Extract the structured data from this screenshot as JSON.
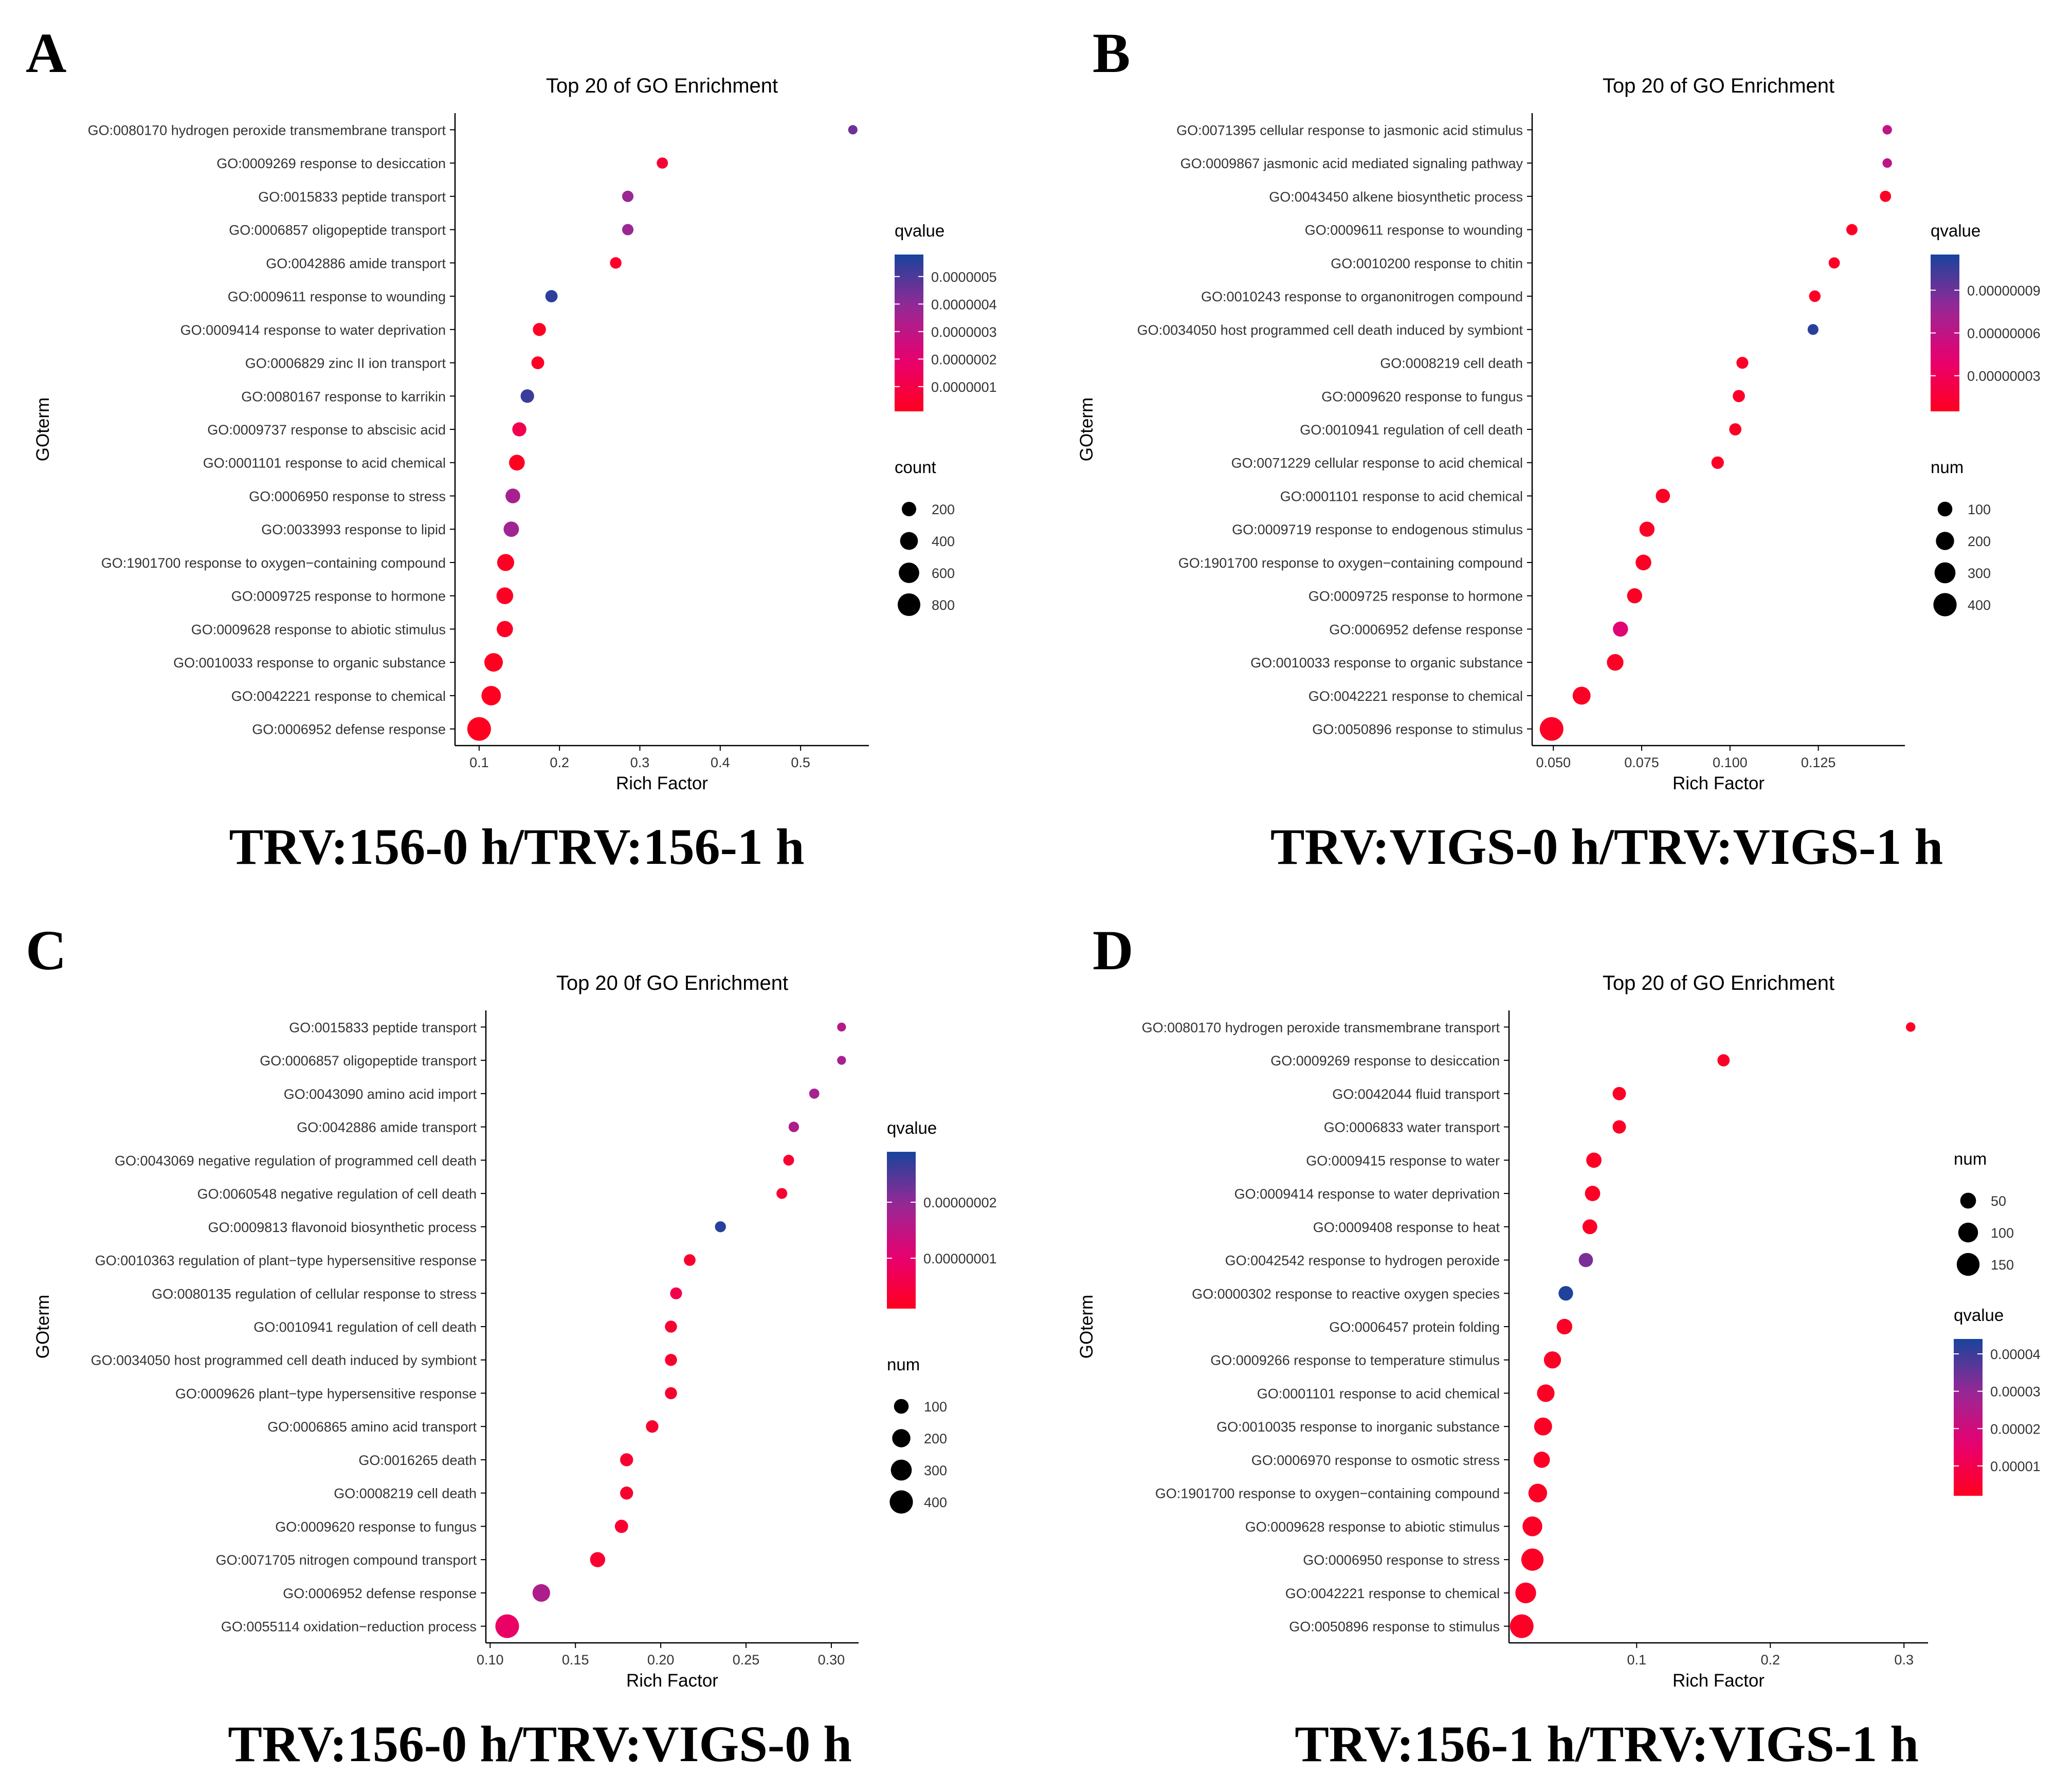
{
  "panels": [
    {
      "letter": "A",
      "caption": "TRV:156-0 h/TRV:156-1 h",
      "chart_data": {
        "type": "scatter",
        "title": "Top 20 of GO Enrichment",
        "xlabel": "Rich Factor",
        "ylabel": "GOterm",
        "xlim": [
          0.07,
          0.585
        ],
        "xticks": [
          0.1,
          0.2,
          0.3,
          0.4,
          0.5
        ],
        "xtick_labels": [
          "0.1",
          "0.2",
          "0.3",
          "0.4",
          "0.5"
        ],
        "terms": [
          "GO:0080170 hydrogen peroxide transmembrane transport",
          "GO:0009269 response to desiccation",
          "GO:0015833 peptide transport",
          "GO:0006857 oligopeptide transport",
          "GO:0042886 amide transport",
          "GO:0009611 response to wounding",
          "GO:0009414 response to water deprivation",
          "GO:0006829 zinc II ion transport",
          "GO:0080167 response to karrikin",
          "GO:0009737 response to abscisic acid",
          "GO:0001101 response to acid chemical",
          "GO:0006950 response to stress",
          "GO:0033993 response to lipid",
          "GO:1901700 response to oxygen−containing compound",
          "GO:0009725 response to hormone",
          "GO:0009628 response to abiotic stimulus",
          "GO:0010033 response to organic substance",
          "GO:0042221 response to chemical",
          "GO:0006952 defense response"
        ],
        "rich_factor": [
          0.565,
          0.328,
          0.285,
          0.285,
          0.27,
          0.19,
          0.175,
          0.173,
          0.16,
          0.15,
          0.147,
          0.142,
          0.14,
          0.133,
          0.132,
          0.132,
          0.118,
          0.115,
          0.1
        ],
        "size_values": [
          30,
          75,
          80,
          80,
          85,
          110,
          140,
          130,
          160,
          185,
          270,
          215,
          250,
          350,
          330,
          300,
          450,
          520,
          900
        ],
        "color_values": [
          4.5e-07,
          6e-08,
          3.8e-07,
          3.8e-07,
          3e-08,
          5.5e-07,
          2e-08,
          2e-08,
          5.3e-07,
          1.2e-07,
          1e-08,
          3.5e-07,
          3.7e-07,
          2e-08,
          2e-08,
          2e-08,
          1e-08,
          1e-08,
          1e-08
        ],
        "color_legend": {
          "title": "qvalue",
          "min": 1e-08,
          "max": 5.8e-07,
          "ticks": [
            1e-07,
            2e-07,
            3e-07,
            4e-07,
            5e-07
          ],
          "tick_labels": [
            "0.0000001",
            "0.0000002",
            "0.0000003",
            "0.0000004",
            "0.0000005"
          ]
        },
        "size_legend": {
          "title": "count",
          "values": [
            200,
            400,
            600,
            800
          ],
          "labels": [
            "200",
            "400",
            "600",
            "800"
          ]
        },
        "size_range": [
          30,
          900
        ],
        "legend_order": "color-first"
      }
    },
    {
      "letter": "B",
      "caption": "TRV:VIGS-0 h/TRV:VIGS-1 h",
      "chart_data": {
        "type": "scatter",
        "title": "Top 20 of GO Enrichment",
        "xlabel": "Rich Factor",
        "ylabel": "GOterm",
        "xlim": [
          0.044,
          0.1495
        ],
        "xticks": [
          0.05,
          0.075,
          0.1,
          0.125
        ],
        "xtick_labels": [
          "0.050",
          "0.075",
          "0.100",
          "0.125"
        ],
        "terms": [
          "GO:0071395 cellular response to jasmonic acid stimulus",
          "GO:0009867 jasmonic acid mediated signaling pathway",
          "GO:0043450 alkene biosynthetic process",
          "GO:0009611 response to wounding",
          "GO:0010200 response to chitin",
          "GO:0010243 response to organonitrogen compound",
          "GO:0034050 host programmed cell death induced by symbiont",
          "GO:0008219 cell death",
          "GO:0009620 response to fungus",
          "GO:0010941 regulation of cell death",
          "GO:0071229 cellular response to acid chemical",
          "GO:0001101 response to acid chemical",
          "GO:0009719 response to endogenous stimulus",
          "GO:1901700 response to oxygen−containing compound",
          "GO:0009725 response to hormone",
          "GO:0006952 defense response",
          "GO:0010033 response to organic substance",
          "GO:0042221 response to chemical",
          "GO:0050896 response to stimulus"
        ],
        "rich_factor": [
          0.1445,
          0.1445,
          0.144,
          0.1345,
          0.1295,
          0.124,
          0.1235,
          0.1035,
          0.1025,
          0.1015,
          0.0965,
          0.081,
          0.0765,
          0.0755,
          0.073,
          0.069,
          0.0675,
          0.058,
          0.0495
        ],
        "size_values": [
          15,
          15,
          35,
          35,
          35,
          40,
          30,
          45,
          50,
          50,
          55,
          90,
          110,
          125,
          110,
          110,
          150,
          190,
          420
        ],
        "color_values": [
          6e-08,
          6e-08,
          7.5e-09,
          7.5e-09,
          7.5e-09,
          7.5e-09,
          1.1e-07,
          7.5e-09,
          7.5e-09,
          7.5e-09,
          7.5e-09,
          7.5e-09,
          7.5e-09,
          7.5e-09,
          7.5e-09,
          4.5e-08,
          7.5e-09,
          7.5e-09,
          7.5e-09
        ],
        "color_legend": {
          "title": "qvalue",
          "min": 5e-09,
          "max": 1.15e-07,
          "ticks": [
            3e-08,
            6e-08,
            9e-08
          ],
          "tick_labels": [
            "0.00000003",
            "0.00000006",
            "0.00000009"
          ]
        },
        "size_legend": {
          "title": "num",
          "values": [
            100,
            200,
            300,
            400
          ],
          "labels": [
            "100",
            "200",
            "300",
            "400"
          ]
        },
        "size_range": [
          15,
          420
        ],
        "legend_order": "color-first"
      }
    },
    {
      "letter": "C",
      "caption": "TRV:156-0 h/TRV:VIGS-0 h",
      "chart_data": {
        "type": "scatter",
        "title": "Top 20 0f GO Enrichment",
        "xlabel": "Rich Factor",
        "ylabel": "GOterm",
        "xlim": [
          0.0975,
          0.316
        ],
        "xticks": [
          0.1,
          0.15,
          0.2,
          0.25,
          0.3
        ],
        "xtick_labels": [
          "0.10",
          "0.15",
          "0.20",
          "0.25",
          "0.30"
        ],
        "terms": [
          "GO:0015833 peptide transport",
          "GO:0006857 oligopeptide transport",
          "GO:0043090 amino acid import",
          "GO:0042886 amide transport",
          "GO:0043069 negative regulation of programmed cell death",
          "GO:0060548 negative regulation of cell death",
          "GO:0009813 flavonoid biosynthetic process",
          "GO:0010363 regulation of plant−type hypersensitive response",
          "GO:0080135 regulation of cellular response to stress",
          "GO:0010941 regulation of cell death",
          "GO:0034050 host programmed cell death induced by symbiont",
          "GO:0009626 plant−type hypersensitive response",
          "GO:0006865 amino acid transport",
          "GO:0016265 death",
          "GO:0008219 cell death",
          "GO:0009620 response to fungus",
          "GO:0071705 nitrogen compound transport",
          "GO:0006952 defense response",
          "GO:0055114 oxidation−reduction process"
        ],
        "rich_factor": [
          0.306,
          0.306,
          0.29,
          0.278,
          0.275,
          0.271,
          0.235,
          0.217,
          0.209,
          0.206,
          0.206,
          0.206,
          0.195,
          0.18,
          0.18,
          0.177,
          0.163,
          0.13,
          0.11
        ],
        "size_values": [
          10,
          10,
          22,
          25,
          30,
          30,
          32,
          42,
          45,
          48,
          48,
          48,
          55,
          65,
          65,
          70,
          110,
          180,
          420
        ],
        "color_values": [
          1.6e-08,
          1.8e-08,
          1.8e-08,
          1.7e-08,
          3e-09,
          3e-09,
          2.8e-08,
          3e-09,
          6e-09,
          3e-09,
          3e-09,
          3e-09,
          3e-09,
          3e-09,
          3e-09,
          3e-09,
          3e-09,
          1.7e-08,
          9e-09
        ],
        "color_legend": {
          "title": "qvalue",
          "min": 1e-09,
          "max": 2.9e-08,
          "ticks": [
            1e-08,
            2e-08
          ],
          "tick_labels": [
            "0.00000001",
            "0.00000002"
          ]
        },
        "size_legend": {
          "title": "num",
          "values": [
            100,
            200,
            300,
            400
          ],
          "labels": [
            "100",
            "200",
            "300",
            "400"
          ]
        },
        "size_range": [
          10,
          420
        ],
        "legend_order": "color-first"
      }
    },
    {
      "letter": "D",
      "caption": "TRV:156-1 h/TRV:VIGS-1 h",
      "chart_data": {
        "type": "scatter",
        "title": "Top 20 of GO Enrichment",
        "xlabel": "Rich Factor",
        "ylabel": "GOterm",
        "xlim": [
          0.0045,
          0.318
        ],
        "xticks": [
          0.1,
          0.2,
          0.3
        ],
        "xtick_labels": [
          "0.1",
          "0.2",
          "0.3"
        ],
        "terms": [
          "GO:0080170 hydrogen peroxide transmembrane transport",
          "GO:0009269 response to desiccation",
          "GO:0042044 fluid transport",
          "GO:0006833 water transport",
          "GO:0009415 response to water",
          "GO:0009414 response to water deprivation",
          "GO:0009408 response to heat",
          "GO:0042542 response to hydrogen peroxide",
          "GO:0000302 response to reactive oxygen species",
          "GO:0006457 protein folding",
          "GO:0009266 response to temperature stimulus",
          "GO:0001101 response to acid chemical",
          "GO:0010035 response to inorganic substance",
          "GO:0006970 response to osmotic stress",
          "GO:1901700 response to oxygen−containing compound",
          "GO:0009628 response to abiotic stimulus",
          "GO:0006950 response to stress",
          "GO:0042221 response to chemical",
          "GO:0050896 response to stimulus"
        ],
        "rich_factor": [
          0.305,
          0.165,
          0.087,
          0.087,
          0.068,
          0.067,
          0.065,
          0.062,
          0.047,
          0.046,
          0.037,
          0.032,
          0.03,
          0.029,
          0.026,
          0.022,
          0.022,
          0.017,
          0.014
        ],
        "size_values": [
          6,
          20,
          28,
          28,
          45,
          45,
          40,
          35,
          38,
          48,
          65,
          70,
          75,
          55,
          85,
          100,
          140,
          115,
          165
        ],
        "color_values": [
          3e-06,
          3e-06,
          3e-06,
          3e-06,
          3e-06,
          3e-06,
          3e-06,
          3.3e-05,
          4.3e-05,
          3e-06,
          3e-06,
          3e-06,
          3e-06,
          3e-06,
          3e-06,
          3e-06,
          3e-06,
          3e-06,
          3e-06
        ],
        "color_legend": {
          "title": "qvalue",
          "min": 2e-06,
          "max": 4.4e-05,
          "ticks": [
            1e-05,
            2e-05,
            3e-05,
            4e-05
          ],
          "tick_labels": [
            "0.00001",
            "0.00002",
            "0.00003",
            "0.00004"
          ]
        },
        "size_legend": {
          "title": "num",
          "values": [
            50,
            100,
            150
          ],
          "labels": [
            "50",
            "100",
            "150"
          ]
        },
        "size_range": [
          6,
          165
        ],
        "legend_order": "size-first"
      }
    }
  ]
}
